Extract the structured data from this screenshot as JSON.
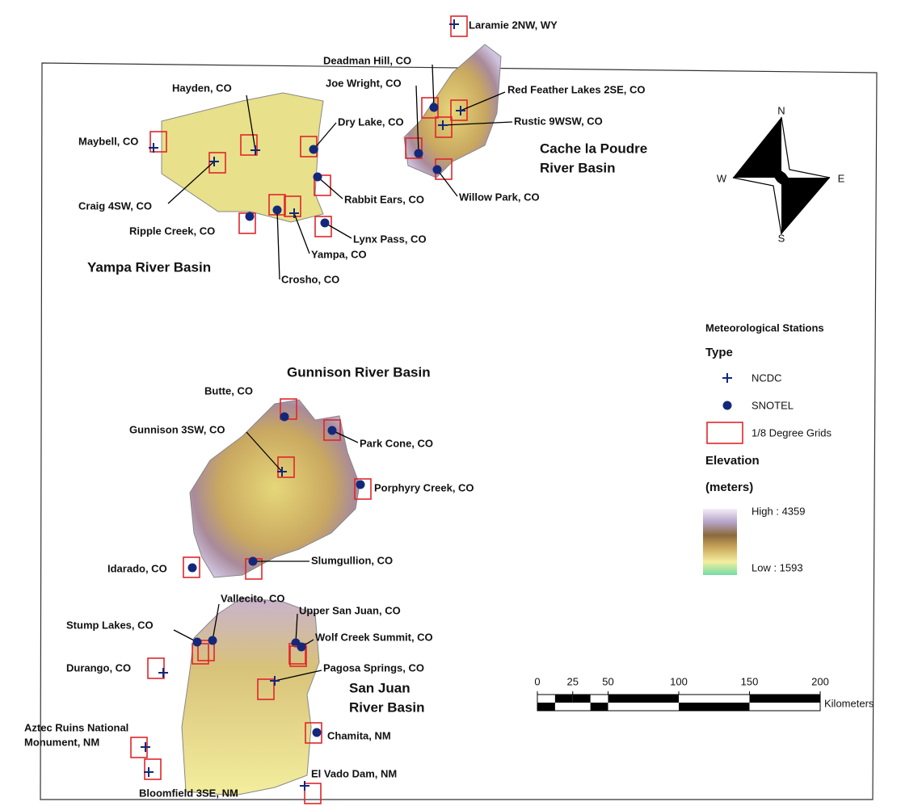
{
  "basins": [
    {
      "lines": [
        "Yampa River Basin"
      ]
    },
    {
      "lines": [
        "Cache la Poudre",
        "River Basin"
      ]
    },
    {
      "lines": [
        "Gunnison River Basin"
      ]
    },
    {
      "lines": [
        "San Juan",
        "River Basin"
      ]
    }
  ],
  "stations": [
    {
      "lines": [
        "Laramie 2NW, WY"
      ],
      "type": "NCDC"
    },
    {
      "lines": [
        "Deadman Hill, CO"
      ],
      "type": "SNOTEL"
    },
    {
      "lines": [
        "Joe Wright, CO"
      ],
      "type": "SNOTEL"
    },
    {
      "lines": [
        "Red Feather Lakes 2SE, CO"
      ],
      "type": "NCDC"
    },
    {
      "lines": [
        "Rustic 9WSW, CO"
      ],
      "type": "NCDC"
    },
    {
      "lines": [
        "Hayden, CO"
      ],
      "type": "NCDC"
    },
    {
      "lines": [
        "Dry Lake, CO"
      ],
      "type": "SNOTEL"
    },
    {
      "lines": [
        "Maybell, CO"
      ],
      "type": "NCDC"
    },
    {
      "lines": [
        "Craig 4SW, CO"
      ],
      "type": "NCDC"
    },
    {
      "lines": [
        "Willow Park, CO"
      ],
      "type": "SNOTEL"
    },
    {
      "lines": [
        "Rabbit Ears, CO"
      ],
      "type": "SNOTEL"
    },
    {
      "lines": [
        "Ripple Creek, CO"
      ],
      "type": "SNOTEL"
    },
    {
      "lines": [
        "Lynx Pass, CO"
      ],
      "type": "SNOTEL"
    },
    {
      "lines": [
        "Yampa, CO"
      ],
      "type": "NCDC"
    },
    {
      "lines": [
        "Crosho, CO"
      ],
      "type": "SNOTEL"
    },
    {
      "lines": [
        "Butte, CO"
      ],
      "type": "SNOTEL"
    },
    {
      "lines": [
        "Gunnison 3SW, CO"
      ],
      "type": "NCDC"
    },
    {
      "lines": [
        "Park Cone, CO"
      ],
      "type": "SNOTEL"
    },
    {
      "lines": [
        "Porphyry Creek, CO"
      ],
      "type": "SNOTEL"
    },
    {
      "lines": [
        "Idarado, CO"
      ],
      "type": "SNOTEL"
    },
    {
      "lines": [
        "Slumgullion, CO"
      ],
      "type": "SNOTEL"
    },
    {
      "lines": [
        "Vallecito, CO"
      ],
      "type": "SNOTEL"
    },
    {
      "lines": [
        "Upper San Juan, CO"
      ],
      "type": "SNOTEL"
    },
    {
      "lines": [
        "Stump Lakes, CO"
      ],
      "type": "SNOTEL"
    },
    {
      "lines": [
        "Wolf Creek Summit, CO"
      ],
      "type": "SNOTEL"
    },
    {
      "lines": [
        "Durango, CO"
      ],
      "type": "NCDC"
    },
    {
      "lines": [
        "Pagosa Springs, CO"
      ],
      "type": "NCDC"
    },
    {
      "lines": [
        "Chamita, NM"
      ],
      "type": "SNOTEL"
    },
    {
      "lines": [
        "Aztec Ruins National",
        "Monument, NM"
      ],
      "type": "NCDC"
    },
    {
      "lines": [
        "Bloomfield 3SE, NM"
      ],
      "type": "NCDC"
    },
    {
      "lines": [
        "El Vado Dam, NM"
      ],
      "type": "NCDC"
    }
  ],
  "compass": {
    "n": "N",
    "e": "E",
    "s": "S",
    "w": "W"
  },
  "legend": {
    "title": "Meteorological Stations",
    "type_heading": "Type",
    "ncdc": "NCDC",
    "snotel": "SNOTEL",
    "grids": "1/8 Degree Grids",
    "elevation": "Elevation",
    "units": "(meters)",
    "high": "High : 4359",
    "low": "Low : 1593"
  },
  "scale": {
    "ticks": [
      0,
      25,
      50,
      100,
      150,
      200
    ],
    "unit": "Kilometers"
  }
}
